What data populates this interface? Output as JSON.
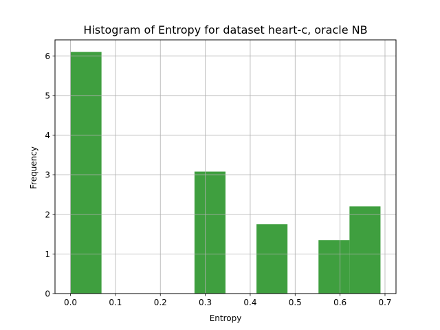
{
  "chart_data": {
    "type": "bar",
    "title": "Histogram of Entropy for dataset heart-c, oracle NB",
    "xlabel": "Entropy",
    "ylabel": "Frequency",
    "xlim": [
      -0.0345,
      0.7245
    ],
    "ylim": [
      0,
      6.405
    ],
    "x_ticks": [
      0.0,
      0.1,
      0.2,
      0.3,
      0.4,
      0.5,
      0.6,
      0.7
    ],
    "x_tick_labels": [
      "0.0",
      "0.1",
      "0.2",
      "0.3",
      "0.4",
      "0.5",
      "0.6",
      "0.7"
    ],
    "y_ticks": [
      0,
      1,
      2,
      3,
      4,
      5,
      6
    ],
    "y_tick_labels": [
      "0",
      "1",
      "2",
      "3",
      "4",
      "5",
      "6"
    ],
    "grid": true,
    "bar_color": "#3f9f3f",
    "bins": [
      {
        "x0": 0.0,
        "x1": 0.069,
        "value": 6.1
      },
      {
        "x0": 0.069,
        "x1": 0.138,
        "value": 0
      },
      {
        "x0": 0.138,
        "x1": 0.207,
        "value": 0
      },
      {
        "x0": 0.207,
        "x1": 0.276,
        "value": 0
      },
      {
        "x0": 0.276,
        "x1": 0.345,
        "value": 3.08
      },
      {
        "x0": 0.345,
        "x1": 0.414,
        "value": 0
      },
      {
        "x0": 0.414,
        "x1": 0.483,
        "value": 1.75
      },
      {
        "x0": 0.483,
        "x1": 0.552,
        "value": 0
      },
      {
        "x0": 0.552,
        "x1": 0.621,
        "value": 1.35
      },
      {
        "x0": 0.621,
        "x1": 0.69,
        "value": 2.2
      }
    ]
  }
}
